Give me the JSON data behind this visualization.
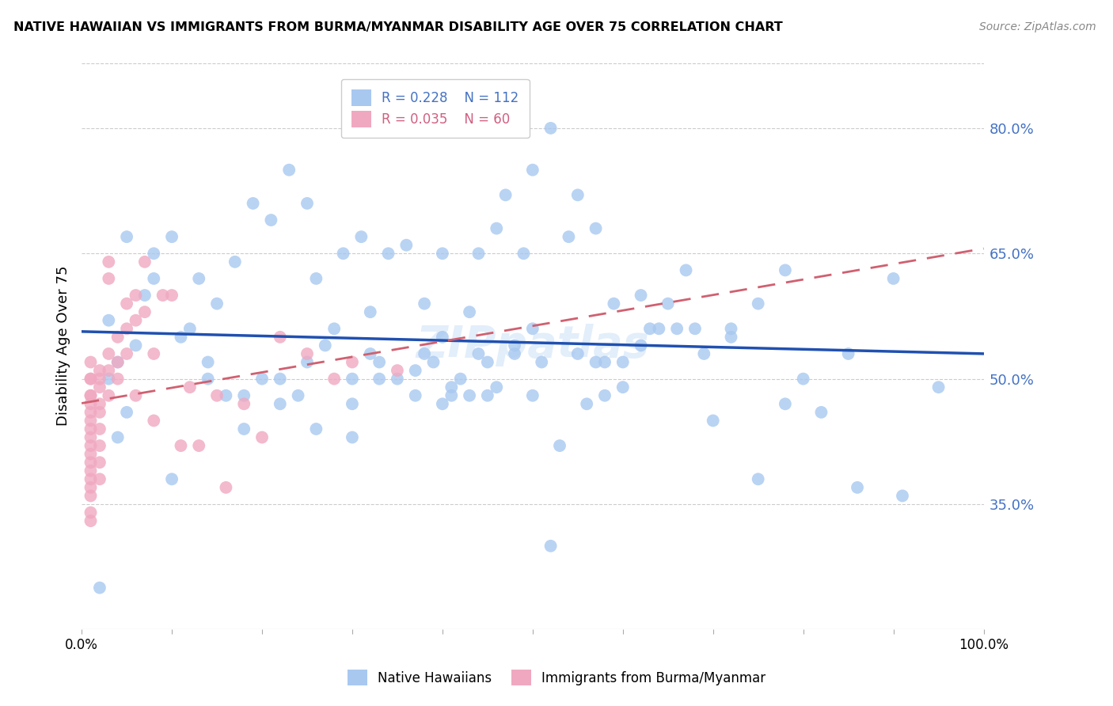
{
  "title": "NATIVE HAWAIIAN VS IMMIGRANTS FROM BURMA/MYANMAR DISABILITY AGE OVER 75 CORRELATION CHART",
  "source": "Source: ZipAtlas.com",
  "ylabel": "Disability Age Over 75",
  "yticks": [
    0.35,
    0.5,
    0.65,
    0.8
  ],
  "ytick_labels": [
    "35.0%",
    "50.0%",
    "65.0%",
    "80.0%"
  ],
  "xlim": [
    0.0,
    1.0
  ],
  "ylim": [
    0.2,
    0.88
  ],
  "blue_R": 0.228,
  "blue_N": 112,
  "pink_R": 0.035,
  "pink_N": 60,
  "blue_color": "#a8c8f0",
  "pink_color": "#f0a8c0",
  "blue_line_color": "#2050b0",
  "pink_line_color": "#d06070",
  "blue_scatter_x": [
    0.02,
    0.05,
    0.04,
    0.03,
    0.04,
    0.06,
    0.08,
    0.1,
    0.12,
    0.14,
    0.16,
    0.18,
    0.2,
    0.22,
    0.24,
    0.25,
    0.27,
    0.28,
    0.3,
    0.3,
    0.32,
    0.33,
    0.35,
    0.37,
    0.38,
    0.39,
    0.4,
    0.4,
    0.42,
    0.43,
    0.44,
    0.45,
    0.46,
    0.48,
    0.5,
    0.51,
    0.52,
    0.53,
    0.55,
    0.56,
    0.57,
    0.58,
    0.58,
    0.6,
    0.6,
    0.62,
    0.63,
    0.65,
    0.66,
    0.68,
    0.7,
    0.72,
    0.75,
    0.78,
    0.8,
    0.85,
    0.9,
    0.95,
    0.05,
    0.08,
    0.1,
    0.13,
    0.15,
    0.17,
    0.19,
    0.21,
    0.23,
    0.25,
    0.26,
    0.29,
    0.31,
    0.32,
    0.34,
    0.36,
    0.38,
    0.4,
    0.41,
    0.43,
    0.44,
    0.46,
    0.47,
    0.49,
    0.5,
    0.52,
    0.54,
    0.55,
    0.57,
    0.59,
    0.62,
    0.64,
    0.67,
    0.69,
    0.72,
    0.75,
    0.78,
    0.82,
    0.86,
    0.91,
    0.03,
    0.07,
    0.11,
    0.14,
    0.18,
    0.22,
    0.26,
    0.3,
    0.33,
    0.37,
    0.41,
    0.45,
    0.48,
    0.5
  ],
  "blue_scatter_y": [
    0.25,
    0.46,
    0.43,
    0.5,
    0.52,
    0.54,
    0.62,
    0.38,
    0.56,
    0.5,
    0.48,
    0.44,
    0.5,
    0.5,
    0.48,
    0.52,
    0.54,
    0.56,
    0.47,
    0.5,
    0.53,
    0.52,
    0.5,
    0.48,
    0.53,
    0.52,
    0.55,
    0.47,
    0.5,
    0.48,
    0.53,
    0.52,
    0.49,
    0.54,
    0.48,
    0.52,
    0.3,
    0.42,
    0.53,
    0.47,
    0.52,
    0.48,
    0.52,
    0.49,
    0.52,
    0.54,
    0.56,
    0.59,
    0.56,
    0.56,
    0.45,
    0.56,
    0.59,
    0.47,
    0.5,
    0.53,
    0.62,
    0.49,
    0.67,
    0.65,
    0.67,
    0.62,
    0.59,
    0.64,
    0.71,
    0.69,
    0.75,
    0.71,
    0.62,
    0.65,
    0.67,
    0.58,
    0.65,
    0.66,
    0.59,
    0.65,
    0.48,
    0.58,
    0.65,
    0.68,
    0.72,
    0.65,
    0.75,
    0.8,
    0.67,
    0.72,
    0.68,
    0.59,
    0.6,
    0.56,
    0.63,
    0.53,
    0.55,
    0.38,
    0.63,
    0.46,
    0.37,
    0.36,
    0.57,
    0.6,
    0.55,
    0.52,
    0.48,
    0.47,
    0.44,
    0.43,
    0.5,
    0.51,
    0.49,
    0.48,
    0.53,
    0.56
  ],
  "pink_scatter_x": [
    0.01,
    0.01,
    0.01,
    0.01,
    0.01,
    0.01,
    0.01,
    0.01,
    0.01,
    0.01,
    0.01,
    0.01,
    0.01,
    0.01,
    0.01,
    0.01,
    0.01,
    0.01,
    0.01,
    0.02,
    0.02,
    0.02,
    0.02,
    0.02,
    0.02,
    0.02,
    0.02,
    0.02,
    0.03,
    0.03,
    0.03,
    0.03,
    0.03,
    0.04,
    0.04,
    0.04,
    0.05,
    0.05,
    0.05,
    0.06,
    0.06,
    0.06,
    0.07,
    0.07,
    0.08,
    0.08,
    0.09,
    0.1,
    0.11,
    0.12,
    0.13,
    0.15,
    0.16,
    0.18,
    0.2,
    0.22,
    0.25,
    0.28,
    0.3,
    0.35
  ],
  "pink_scatter_y": [
    0.48,
    0.5,
    0.52,
    0.5,
    0.45,
    0.44,
    0.48,
    0.47,
    0.43,
    0.46,
    0.42,
    0.41,
    0.38,
    0.37,
    0.4,
    0.39,
    0.36,
    0.34,
    0.33,
    0.5,
    0.49,
    0.51,
    0.47,
    0.46,
    0.44,
    0.42,
    0.4,
    0.38,
    0.51,
    0.53,
    0.48,
    0.62,
    0.64,
    0.52,
    0.55,
    0.5,
    0.56,
    0.53,
    0.59,
    0.57,
    0.6,
    0.48,
    0.64,
    0.58,
    0.53,
    0.45,
    0.6,
    0.6,
    0.42,
    0.49,
    0.42,
    0.48,
    0.37,
    0.47,
    0.43,
    0.55,
    0.53,
    0.5,
    0.52,
    0.51
  ]
}
